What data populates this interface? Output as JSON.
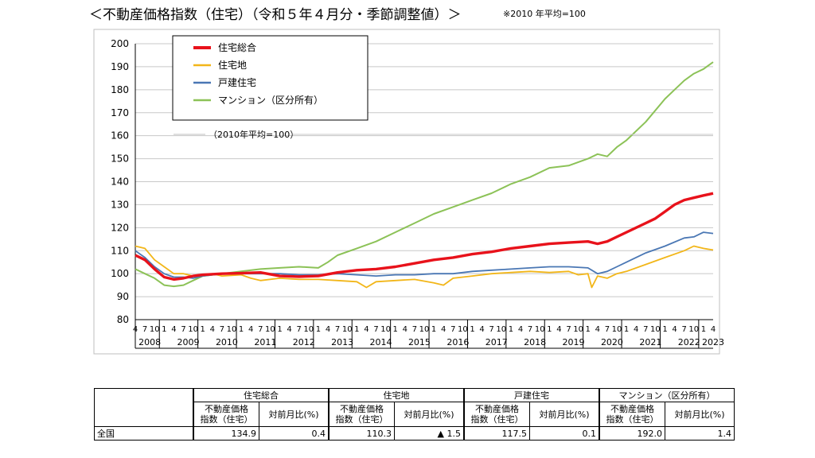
{
  "title": "＜不動産価格指数（住宅）（令和５年４月分・季節調整値）＞",
  "note": "※2010 年平均=100",
  "chart_data": {
    "type": "line",
    "ylim": [
      80,
      200
    ],
    "yticks": [
      80,
      90,
      100,
      110,
      120,
      130,
      140,
      150,
      160,
      170,
      180,
      190,
      200
    ],
    "x_start": "2008-04",
    "x_end": "2023-04",
    "month_tick_labels": [
      "4",
      "7",
      "10",
      "1"
    ],
    "years": [
      "2008",
      "2009",
      "2010",
      "2011",
      "2012",
      "2013",
      "2014",
      "2015",
      "2016",
      "2017",
      "2018",
      "2019",
      "2020",
      "2021",
      "2022",
      "2023"
    ],
    "legend_note": "（2010年平均=100）",
    "grid": true,
    "series": [
      {
        "name": "住宅総合",
        "color": "#e8121b",
        "width": 3.4,
        "points": [
          [
            2008.25,
            108
          ],
          [
            2008.5,
            106
          ],
          [
            2008.75,
            102
          ],
          [
            2009.0,
            98.5
          ],
          [
            2009.25,
            97.5
          ],
          [
            2009.5,
            98
          ],
          [
            2009.75,
            99
          ],
          [
            2010.0,
            99.5
          ],
          [
            2010.5,
            100
          ],
          [
            2011.0,
            100.2
          ],
          [
            2011.5,
            100.5
          ],
          [
            2012.0,
            99
          ],
          [
            2012.5,
            98.7
          ],
          [
            2013.0,
            99
          ],
          [
            2013.5,
            100.5
          ],
          [
            2014.0,
            101.5
          ],
          [
            2014.5,
            102
          ],
          [
            2015.0,
            103
          ],
          [
            2015.5,
            104.5
          ],
          [
            2016.0,
            106
          ],
          [
            2016.5,
            107
          ],
          [
            2017.0,
            108.5
          ],
          [
            2017.5,
            109.5
          ],
          [
            2018.0,
            111
          ],
          [
            2018.5,
            112
          ],
          [
            2019.0,
            113
          ],
          [
            2019.5,
            113.5
          ],
          [
            2020.0,
            114
          ],
          [
            2020.25,
            113
          ],
          [
            2020.5,
            114
          ],
          [
            2020.75,
            116
          ],
          [
            2021.0,
            118
          ],
          [
            2021.5,
            122
          ],
          [
            2021.75,
            124
          ],
          [
            2022.0,
            127
          ],
          [
            2022.25,
            130
          ],
          [
            2022.5,
            132
          ],
          [
            2022.75,
            133
          ],
          [
            2023.0,
            134
          ],
          [
            2023.25,
            134.9
          ]
        ]
      },
      {
        "name": "住宅地",
        "color": "#f2b619",
        "width": 1.8,
        "points": [
          [
            2008.25,
            112
          ],
          [
            2008.5,
            111
          ],
          [
            2008.75,
            106
          ],
          [
            2009.0,
            103
          ],
          [
            2009.25,
            100
          ],
          [
            2009.5,
            100
          ],
          [
            2009.75,
            99
          ],
          [
            2010.0,
            99
          ],
          [
            2010.25,
            100
          ],
          [
            2010.5,
            99
          ],
          [
            2011.0,
            99.5
          ],
          [
            2011.25,
            98
          ],
          [
            2011.5,
            97
          ],
          [
            2012.0,
            98
          ],
          [
            2012.5,
            97.5
          ],
          [
            2013.0,
            97.5
          ],
          [
            2013.5,
            97
          ],
          [
            2014.0,
            96.5
          ],
          [
            2014.25,
            94
          ],
          [
            2014.5,
            96.5
          ],
          [
            2015.0,
            97
          ],
          [
            2015.5,
            97.5
          ],
          [
            2016.0,
            96
          ],
          [
            2016.25,
            95
          ],
          [
            2016.5,
            98
          ],
          [
            2017.0,
            99
          ],
          [
            2017.5,
            100
          ],
          [
            2018.0,
            100.5
          ],
          [
            2018.5,
            101
          ],
          [
            2019.0,
            100.5
          ],
          [
            2019.5,
            101
          ],
          [
            2019.75,
            99.5
          ],
          [
            2020.0,
            100
          ],
          [
            2020.1,
            94
          ],
          [
            2020.25,
            99
          ],
          [
            2020.5,
            98
          ],
          [
            2020.75,
            100
          ],
          [
            2021.0,
            101
          ],
          [
            2021.5,
            104
          ],
          [
            2022.0,
            107
          ],
          [
            2022.5,
            110
          ],
          [
            2022.75,
            112
          ],
          [
            2023.0,
            111
          ],
          [
            2023.25,
            110.3
          ]
        ]
      },
      {
        "name": "戸建住宅",
        "color": "#4a77b4",
        "width": 1.8,
        "points": [
          [
            2008.25,
            110
          ],
          [
            2008.5,
            107
          ],
          [
            2008.75,
            103
          ],
          [
            2009.0,
            100
          ],
          [
            2009.25,
            98.5
          ],
          [
            2009.5,
            98.5
          ],
          [
            2009.75,
            98
          ],
          [
            2010.0,
            99
          ],
          [
            2010.5,
            100
          ],
          [
            2011.0,
            100
          ],
          [
            2011.5,
            100
          ],
          [
            2012.0,
            100
          ],
          [
            2012.5,
            99.5
          ],
          [
            2013.0,
            99.5
          ],
          [
            2013.5,
            100
          ],
          [
            2014.0,
            99.5
          ],
          [
            2014.5,
            99
          ],
          [
            2015.0,
            99.5
          ],
          [
            2015.5,
            99.5
          ],
          [
            2016.0,
            100
          ],
          [
            2016.5,
            100
          ],
          [
            2017.0,
            101
          ],
          [
            2017.5,
            101.5
          ],
          [
            2018.0,
            102
          ],
          [
            2018.5,
            102.5
          ],
          [
            2019.0,
            103
          ],
          [
            2019.5,
            103
          ],
          [
            2020.0,
            102.5
          ],
          [
            2020.25,
            100
          ],
          [
            2020.5,
            101
          ],
          [
            2020.75,
            103
          ],
          [
            2021.0,
            105
          ],
          [
            2021.5,
            109
          ],
          [
            2022.0,
            112
          ],
          [
            2022.5,
            115.5
          ],
          [
            2022.75,
            116
          ],
          [
            2023.0,
            118
          ],
          [
            2023.25,
            117.5
          ]
        ]
      },
      {
        "name": "マンション（区分所有）",
        "color": "#8cc257",
        "width": 2.0,
        "points": [
          [
            2008.25,
            102
          ],
          [
            2008.5,
            100
          ],
          [
            2008.75,
            98
          ],
          [
            2009.0,
            95
          ],
          [
            2009.25,
            94.5
          ],
          [
            2009.5,
            95
          ],
          [
            2009.75,
            97
          ],
          [
            2010.0,
            99
          ],
          [
            2010.5,
            100
          ],
          [
            2011.0,
            101
          ],
          [
            2011.5,
            102
          ],
          [
            2012.0,
            102.5
          ],
          [
            2012.5,
            103
          ],
          [
            2013.0,
            102.5
          ],
          [
            2013.25,
            105
          ],
          [
            2013.5,
            108
          ],
          [
            2014.0,
            111
          ],
          [
            2014.5,
            114
          ],
          [
            2015.0,
            118
          ],
          [
            2015.5,
            122
          ],
          [
            2016.0,
            126
          ],
          [
            2016.5,
            129
          ],
          [
            2017.0,
            132
          ],
          [
            2017.5,
            135
          ],
          [
            2018.0,
            139
          ],
          [
            2018.5,
            142
          ],
          [
            2019.0,
            146
          ],
          [
            2019.5,
            147
          ],
          [
            2020.0,
            150
          ],
          [
            2020.25,
            152
          ],
          [
            2020.5,
            151
          ],
          [
            2020.75,
            155
          ],
          [
            2021.0,
            158
          ],
          [
            2021.5,
            166
          ],
          [
            2022.0,
            176
          ],
          [
            2022.25,
            180
          ],
          [
            2022.5,
            184
          ],
          [
            2022.75,
            187
          ],
          [
            2023.0,
            189
          ],
          [
            2023.25,
            192
          ]
        ]
      }
    ]
  },
  "table": {
    "groups": [
      "住宅総合",
      "住宅地",
      "戸建住宅",
      "マンション（区分所有）"
    ],
    "sub_index": [
      "不動産価格",
      "指数（住宅）"
    ],
    "sub_ratio": "対前月比(%)",
    "row_label": "全国",
    "values": [
      {
        "index": "134.9",
        "ratio": "0.4"
      },
      {
        "index": "110.3",
        "ratio": "▲ 1.5"
      },
      {
        "index": "117.5",
        "ratio": "0.1"
      },
      {
        "index": "192.0",
        "ratio": "1.4"
      }
    ]
  }
}
